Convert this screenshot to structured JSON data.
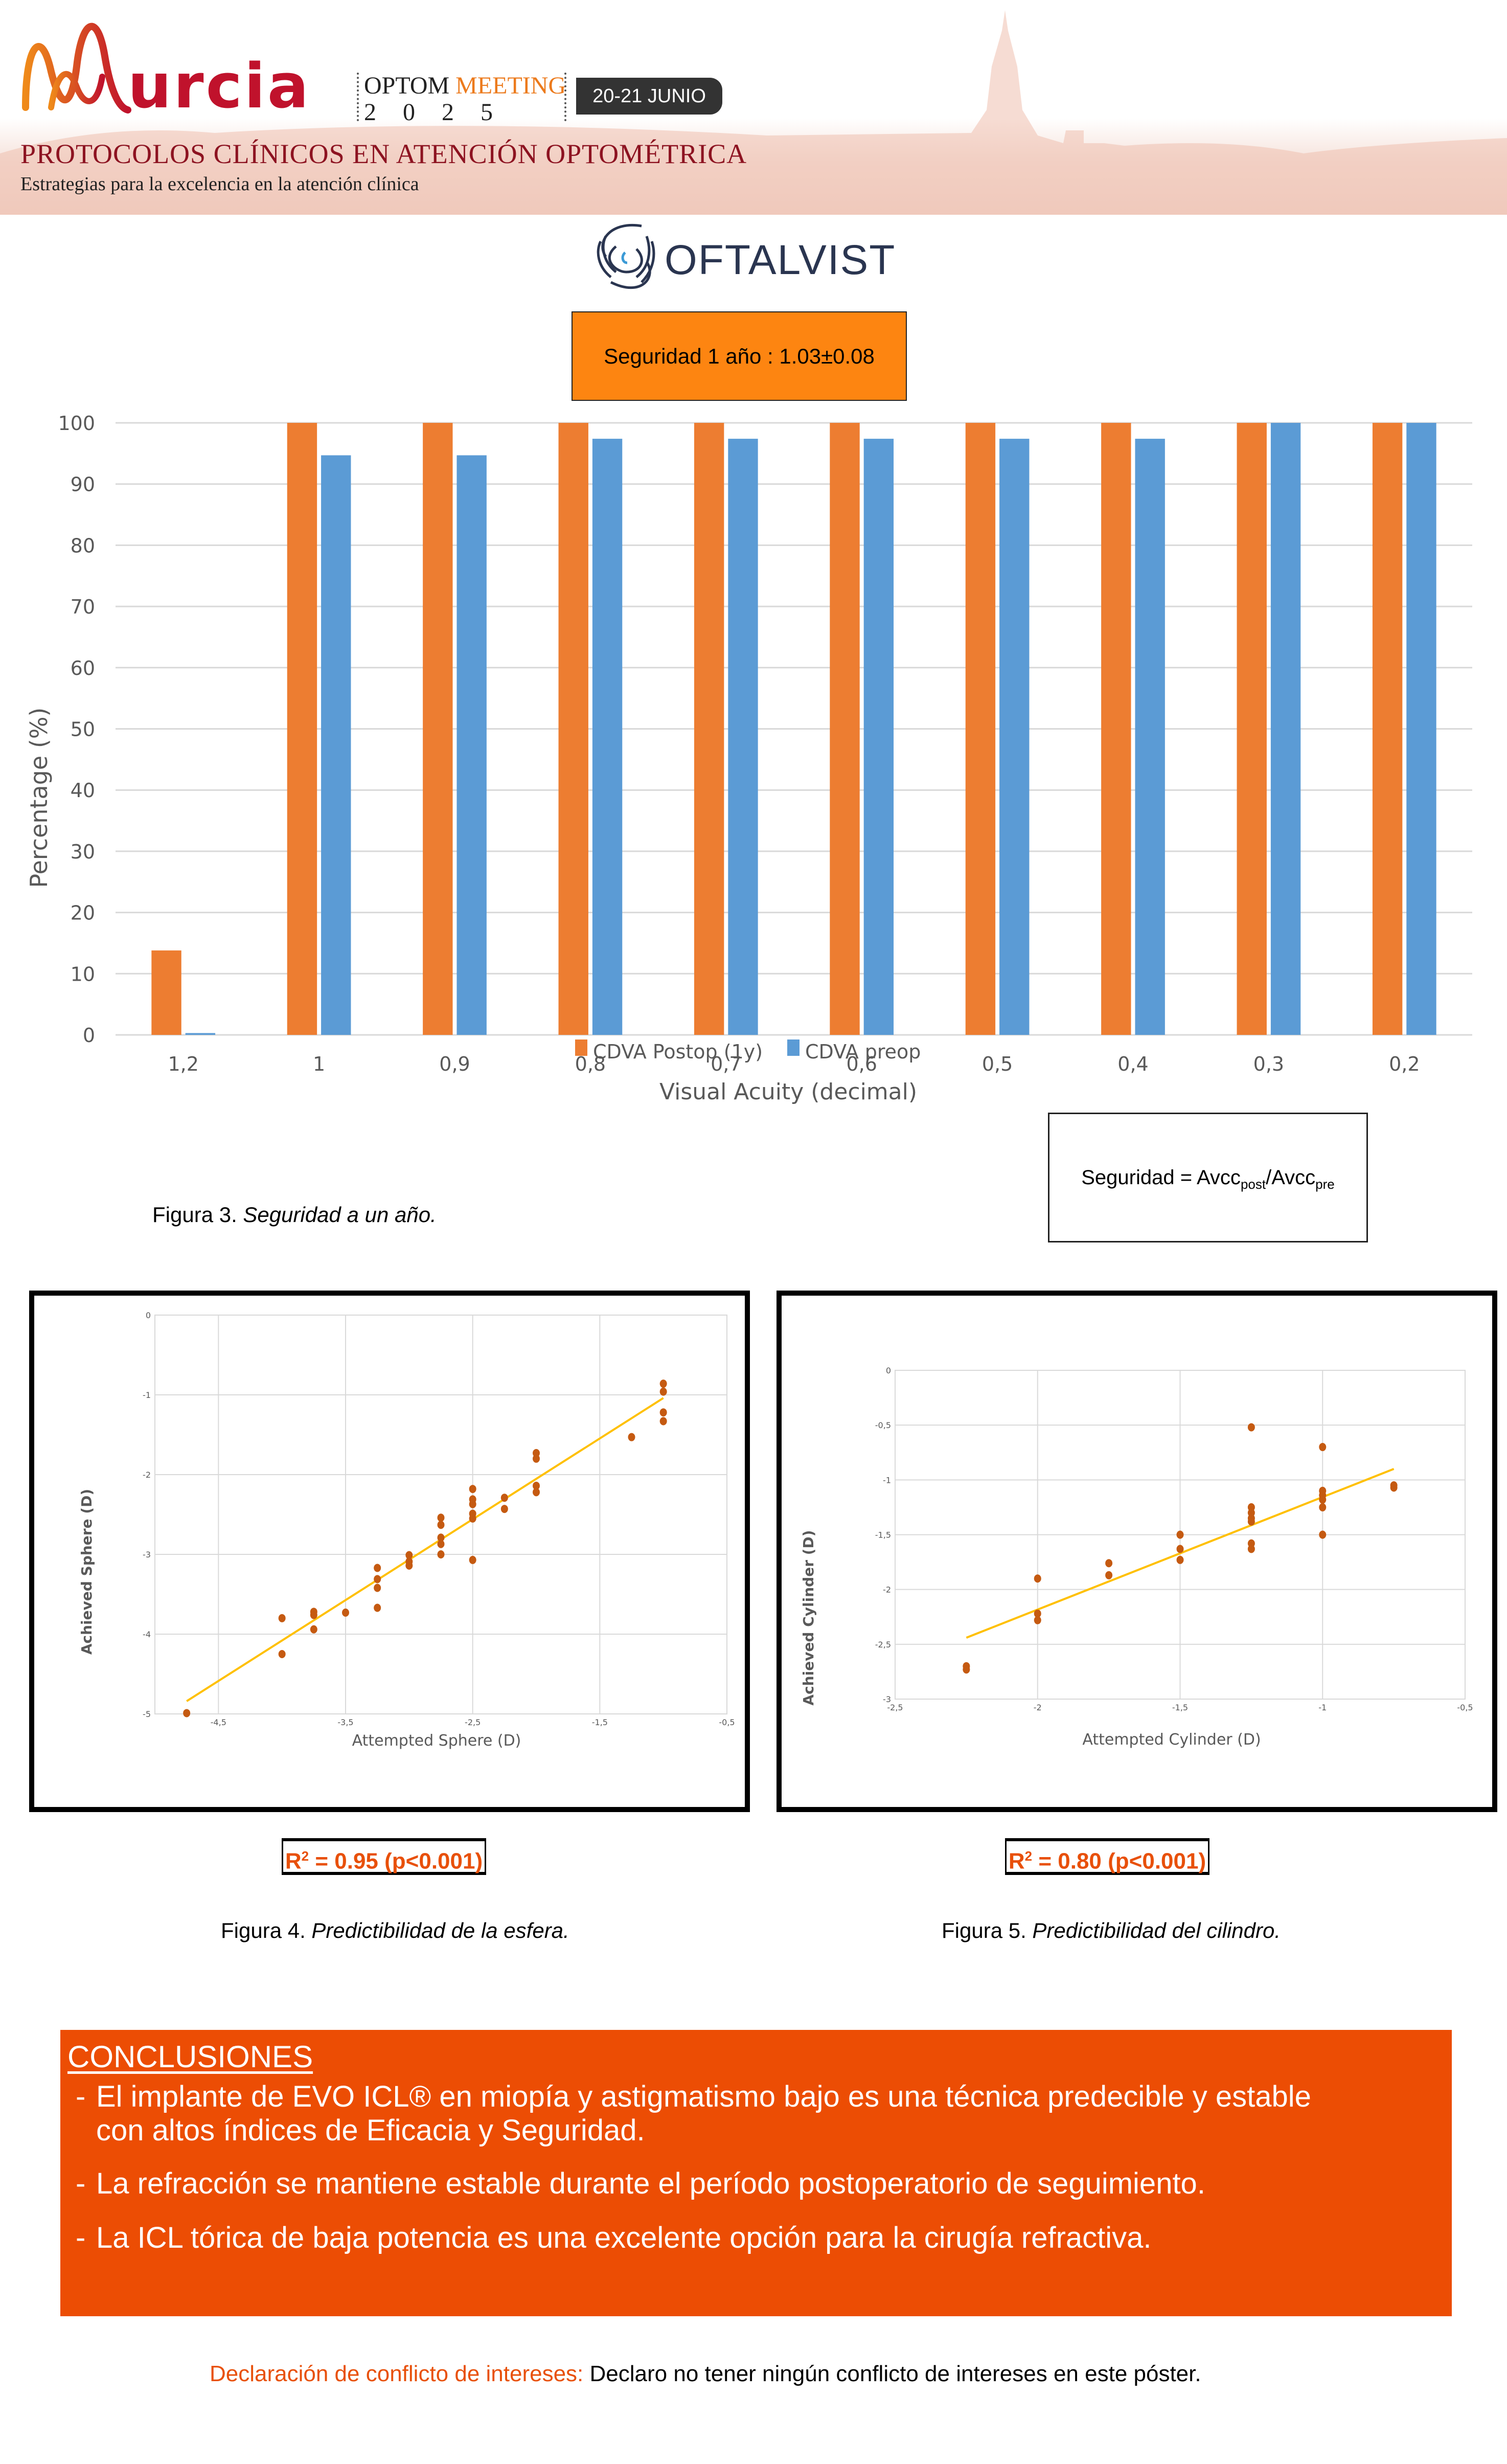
{
  "header": {
    "event_logo_word": "urcia",
    "event_name_part1": "OPTOM",
    "event_name_part2": "MEETING",
    "event_year": "2025",
    "event_dates": "20-21 JUNIO",
    "congress_title": "PROTOCOLOS CLÍNICOS EN ATENCIÓN OPTOMÉTRICA",
    "congress_subtitle": "Estrategias para la excelencia en la atención clínica",
    "colors": {
      "primary_red": "#c0122c",
      "accent_orange": "#ec7a1c",
      "title_red": "#8d1321"
    }
  },
  "sponsor": {
    "name": "OFTALVIST",
    "icon": "eye-logo-icon"
  },
  "safety_box": {
    "text": "Seguridad 1 año : 1.03±0.08",
    "background": "#fd8511"
  },
  "formula": {
    "prefix": "Seguridad = Avcc",
    "sub1": "post",
    "mid": "/Avcc",
    "sub2": "pre"
  },
  "figure3_caption": {
    "label": "Figura 3. ",
    "text": "Seguridad a un año."
  },
  "figure4_caption": {
    "label": "Figura 4. ",
    "text": "Predictibilidad de la esfera."
  },
  "figure5_caption": {
    "label": "Figura 5. ",
    "text": "Predictibilidad del cilindro."
  },
  "r2_sphere": {
    "label": "R",
    "sup": "2",
    "text": " = 0.95 (p<0.001)"
  },
  "r2_cylinder": {
    "label": "R",
    "sup": "2",
    "text": " = 0.80 (p<0.001)"
  },
  "chart_data": [
    {
      "type": "bar",
      "title": "",
      "xlabel": "Visual Acuity (decimal)",
      "ylabel": "Percentage (%)",
      "ylim": [
        0,
        100
      ],
      "yticks": [
        0,
        10,
        20,
        30,
        40,
        50,
        60,
        70,
        80,
        90,
        100
      ],
      "grid": true,
      "legend": "bottom",
      "categories": [
        "1,2",
        "1",
        "0,9",
        "0,8",
        "0,7",
        "0,6",
        "0,5",
        "0,4",
        "0,3",
        "0,2"
      ],
      "series": [
        {
          "name": "CDVA Postop (1y)",
          "color": "#ed7d31",
          "values": [
            13.8,
            100,
            100,
            100,
            100,
            100,
            100,
            100,
            100,
            100
          ]
        },
        {
          "name": "CDVA preop",
          "color": "#5b9bd5",
          "values": [
            0.3,
            94.7,
            94.7,
            97.4,
            97.4,
            97.4,
            97.4,
            97.4,
            100,
            100
          ]
        }
      ]
    },
    {
      "type": "scatter",
      "title": "",
      "xlabel": "Attempted Sphere (D)",
      "ylabel": "Achieved Sphere (D)",
      "xlim": [
        -5,
        -0.5
      ],
      "ylim": [
        -5,
        0
      ],
      "xticks": [
        "-4,5",
        "-3,5",
        "-2,5",
        "-1,5",
        "-0,5"
      ],
      "xtick_values": [
        -4.5,
        -3.5,
        -2.5,
        -1.5,
        -0.5
      ],
      "yticks": [
        "0",
        "-1",
        "-2",
        "-3",
        "-4",
        "-5"
      ],
      "ytick_values": [
        0,
        -1,
        -2,
        -3,
        -4,
        -5
      ],
      "grid": true,
      "point_color": "#c55a11",
      "trend_color": "#ffc000",
      "trendline": [
        [
          -4.75,
          -4.84
        ],
        [
          -1.0,
          -1.04
        ]
      ],
      "points": [
        [
          -4.75,
          -4.99
        ],
        [
          -4.0,
          -3.8
        ],
        [
          -4.0,
          -4.25
        ],
        [
          -3.75,
          -3.72
        ],
        [
          -3.75,
          -3.76
        ],
        [
          -3.75,
          -3.94
        ],
        [
          -3.5,
          -3.73
        ],
        [
          -3.25,
          -3.17
        ],
        [
          -3.25,
          -3.31
        ],
        [
          -3.25,
          -3.42
        ],
        [
          -3.25,
          -3.67
        ],
        [
          -3.0,
          -3.01
        ],
        [
          -3.0,
          -3.09
        ],
        [
          -3.0,
          -3.14
        ],
        [
          -2.75,
          -2.54
        ],
        [
          -2.75,
          -2.63
        ],
        [
          -2.75,
          -2.79
        ],
        [
          -2.75,
          -2.87
        ],
        [
          -2.75,
          -3.0
        ],
        [
          -2.5,
          -2.18
        ],
        [
          -2.5,
          -2.31
        ],
        [
          -2.5,
          -2.37
        ],
        [
          -2.5,
          -2.49
        ],
        [
          -2.5,
          -2.55
        ],
        [
          -2.5,
          -3.07
        ],
        [
          -2.25,
          -2.29
        ],
        [
          -2.25,
          -2.43
        ],
        [
          -2.0,
          -1.73
        ],
        [
          -2.0,
          -1.8
        ],
        [
          -2.0,
          -2.14
        ],
        [
          -2.0,
          -2.22
        ],
        [
          -1.25,
          -1.53
        ],
        [
          -1.0,
          -0.86
        ],
        [
          -1.0,
          -0.96
        ],
        [
          -1.0,
          -1.22
        ],
        [
          -1.0,
          -1.33
        ]
      ]
    },
    {
      "type": "scatter",
      "title": "",
      "xlabel": "Attempted Cylinder (D)",
      "ylabel": "Achieved Cylinder (D)",
      "xlim": [
        -2.5,
        -0.5
      ],
      "ylim": [
        -3,
        0
      ],
      "xticks": [
        "-2,5",
        "-2",
        "-1,5",
        "-1",
        "-0,5"
      ],
      "xtick_values": [
        -2.5,
        -2.0,
        -1.5,
        -1.0,
        -0.5
      ],
      "yticks": [
        "0",
        "-0,5",
        "-1",
        "-1,5",
        "-2",
        "-2,5",
        "-3"
      ],
      "ytick_values": [
        0,
        -0.5,
        -1,
        -1.5,
        -2,
        -2.5,
        -3
      ],
      "grid": true,
      "point_color": "#c55a11",
      "trend_color": "#ffc000",
      "trendline": [
        [
          -2.25,
          -2.44
        ],
        [
          -0.75,
          -0.9
        ]
      ],
      "points": [
        [
          -2.25,
          -2.7
        ],
        [
          -2.25,
          -2.73
        ],
        [
          -2.0,
          -1.9
        ],
        [
          -2.0,
          -2.22
        ],
        [
          -2.0,
          -2.28
        ],
        [
          -1.75,
          -1.76
        ],
        [
          -1.75,
          -1.87
        ],
        [
          -1.5,
          -1.5
        ],
        [
          -1.5,
          -1.63
        ],
        [
          -1.5,
          -1.73
        ],
        [
          -1.25,
          -0.52
        ],
        [
          -1.25,
          -1.25
        ],
        [
          -1.25,
          -1.3
        ],
        [
          -1.25,
          -1.35
        ],
        [
          -1.25,
          -1.38
        ],
        [
          -1.25,
          -1.58
        ],
        [
          -1.25,
          -1.63
        ],
        [
          -1.0,
          -0.7
        ],
        [
          -1.0,
          -1.1
        ],
        [
          -1.0,
          -1.14
        ],
        [
          -1.0,
          -1.18
        ],
        [
          -1.0,
          -1.25
        ],
        [
          -1.0,
          -1.5
        ],
        [
          -0.75,
          -1.05
        ],
        [
          -0.75,
          -1.07
        ]
      ]
    }
  ],
  "conclusions": {
    "title": "CONCLUSIONES",
    "items": [
      {
        "line1": "El implante de EVO ICL® en miopía y astigmatismo bajo es una técnica predecible y estable",
        "line2": "con altos índices de Eficacia y Seguridad."
      },
      {
        "line1": "La refracción se mantiene estable durante el período postoperatorio de seguimiento."
      },
      {
        "line1": "La ICL tórica de baja potencia es una excelente opción para la cirugía refractiva."
      }
    ],
    "dash": "-",
    "background": "#ec4d04"
  },
  "conflict": {
    "label": "Declaración de conflicto de intereses:",
    "text": " Declaro no tener ningún conflicto de intereses en este póster."
  }
}
